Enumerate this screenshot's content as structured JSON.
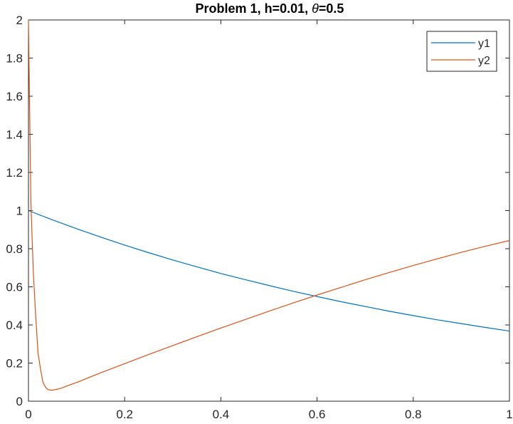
{
  "chart_data": {
    "type": "line",
    "title_prefix": "Problem 1, h=0.01, ",
    "title_symbol": "θ",
    "title_suffix": "=0.5",
    "xlabel": "",
    "ylabel": "",
    "xlim": [
      0,
      1
    ],
    "ylim": [
      0,
      2
    ],
    "xticks": [
      0,
      0.2,
      0.4,
      0.6,
      0.8,
      1
    ],
    "xtick_labels": [
      "0",
      "0.2",
      "0.4",
      "0.6",
      "0.8",
      "1"
    ],
    "yticks": [
      0,
      0.2,
      0.4,
      0.6,
      0.8,
      1,
      1.2,
      1.4,
      1.6,
      1.8,
      2
    ],
    "ytick_labels": [
      "0",
      "0.2",
      "0.4",
      "0.6",
      "0.8",
      "1",
      "1.2",
      "1.4",
      "1.6",
      "1.8",
      "2"
    ],
    "grid": false,
    "legend_position": "top-right",
    "series": [
      {
        "name": "y1",
        "color": "#0072BD",
        "x": [
          0,
          0.05,
          0.1,
          0.15,
          0.2,
          0.25,
          0.3,
          0.35,
          0.4,
          0.45,
          0.5,
          0.55,
          0.6,
          0.65,
          0.7,
          0.75,
          0.8,
          0.85,
          0.9,
          0.95,
          1
        ],
        "y": [
          1.0,
          0.951,
          0.905,
          0.861,
          0.819,
          0.779,
          0.741,
          0.705,
          0.67,
          0.638,
          0.607,
          0.577,
          0.549,
          0.522,
          0.497,
          0.472,
          0.449,
          0.427,
          0.407,
          0.387,
          0.368
        ]
      },
      {
        "name": "y2",
        "color": "#D95319",
        "x": [
          0,
          0.005,
          0.01,
          0.015,
          0.02,
          0.025,
          0.03,
          0.035,
          0.04,
          0.045,
          0.05,
          0.06,
          0.07,
          0.08,
          0.1,
          0.15,
          0.2,
          0.25,
          0.3,
          0.35,
          0.4,
          0.45,
          0.5,
          0.55,
          0.6,
          0.65,
          0.7,
          0.75,
          0.8,
          0.85,
          0.9,
          0.95,
          1
        ],
        "y": [
          2.0,
          1.05,
          0.68,
          0.45,
          0.25,
          0.17,
          0.1,
          0.075,
          0.062,
          0.058,
          0.058,
          0.063,
          0.07,
          0.08,
          0.098,
          0.149,
          0.197,
          0.245,
          0.292,
          0.338,
          0.384,
          0.428,
          0.472,
          0.515,
          0.557,
          0.597,
          0.637,
          0.675,
          0.712,
          0.747,
          0.781,
          0.813,
          0.843
        ]
      }
    ]
  }
}
